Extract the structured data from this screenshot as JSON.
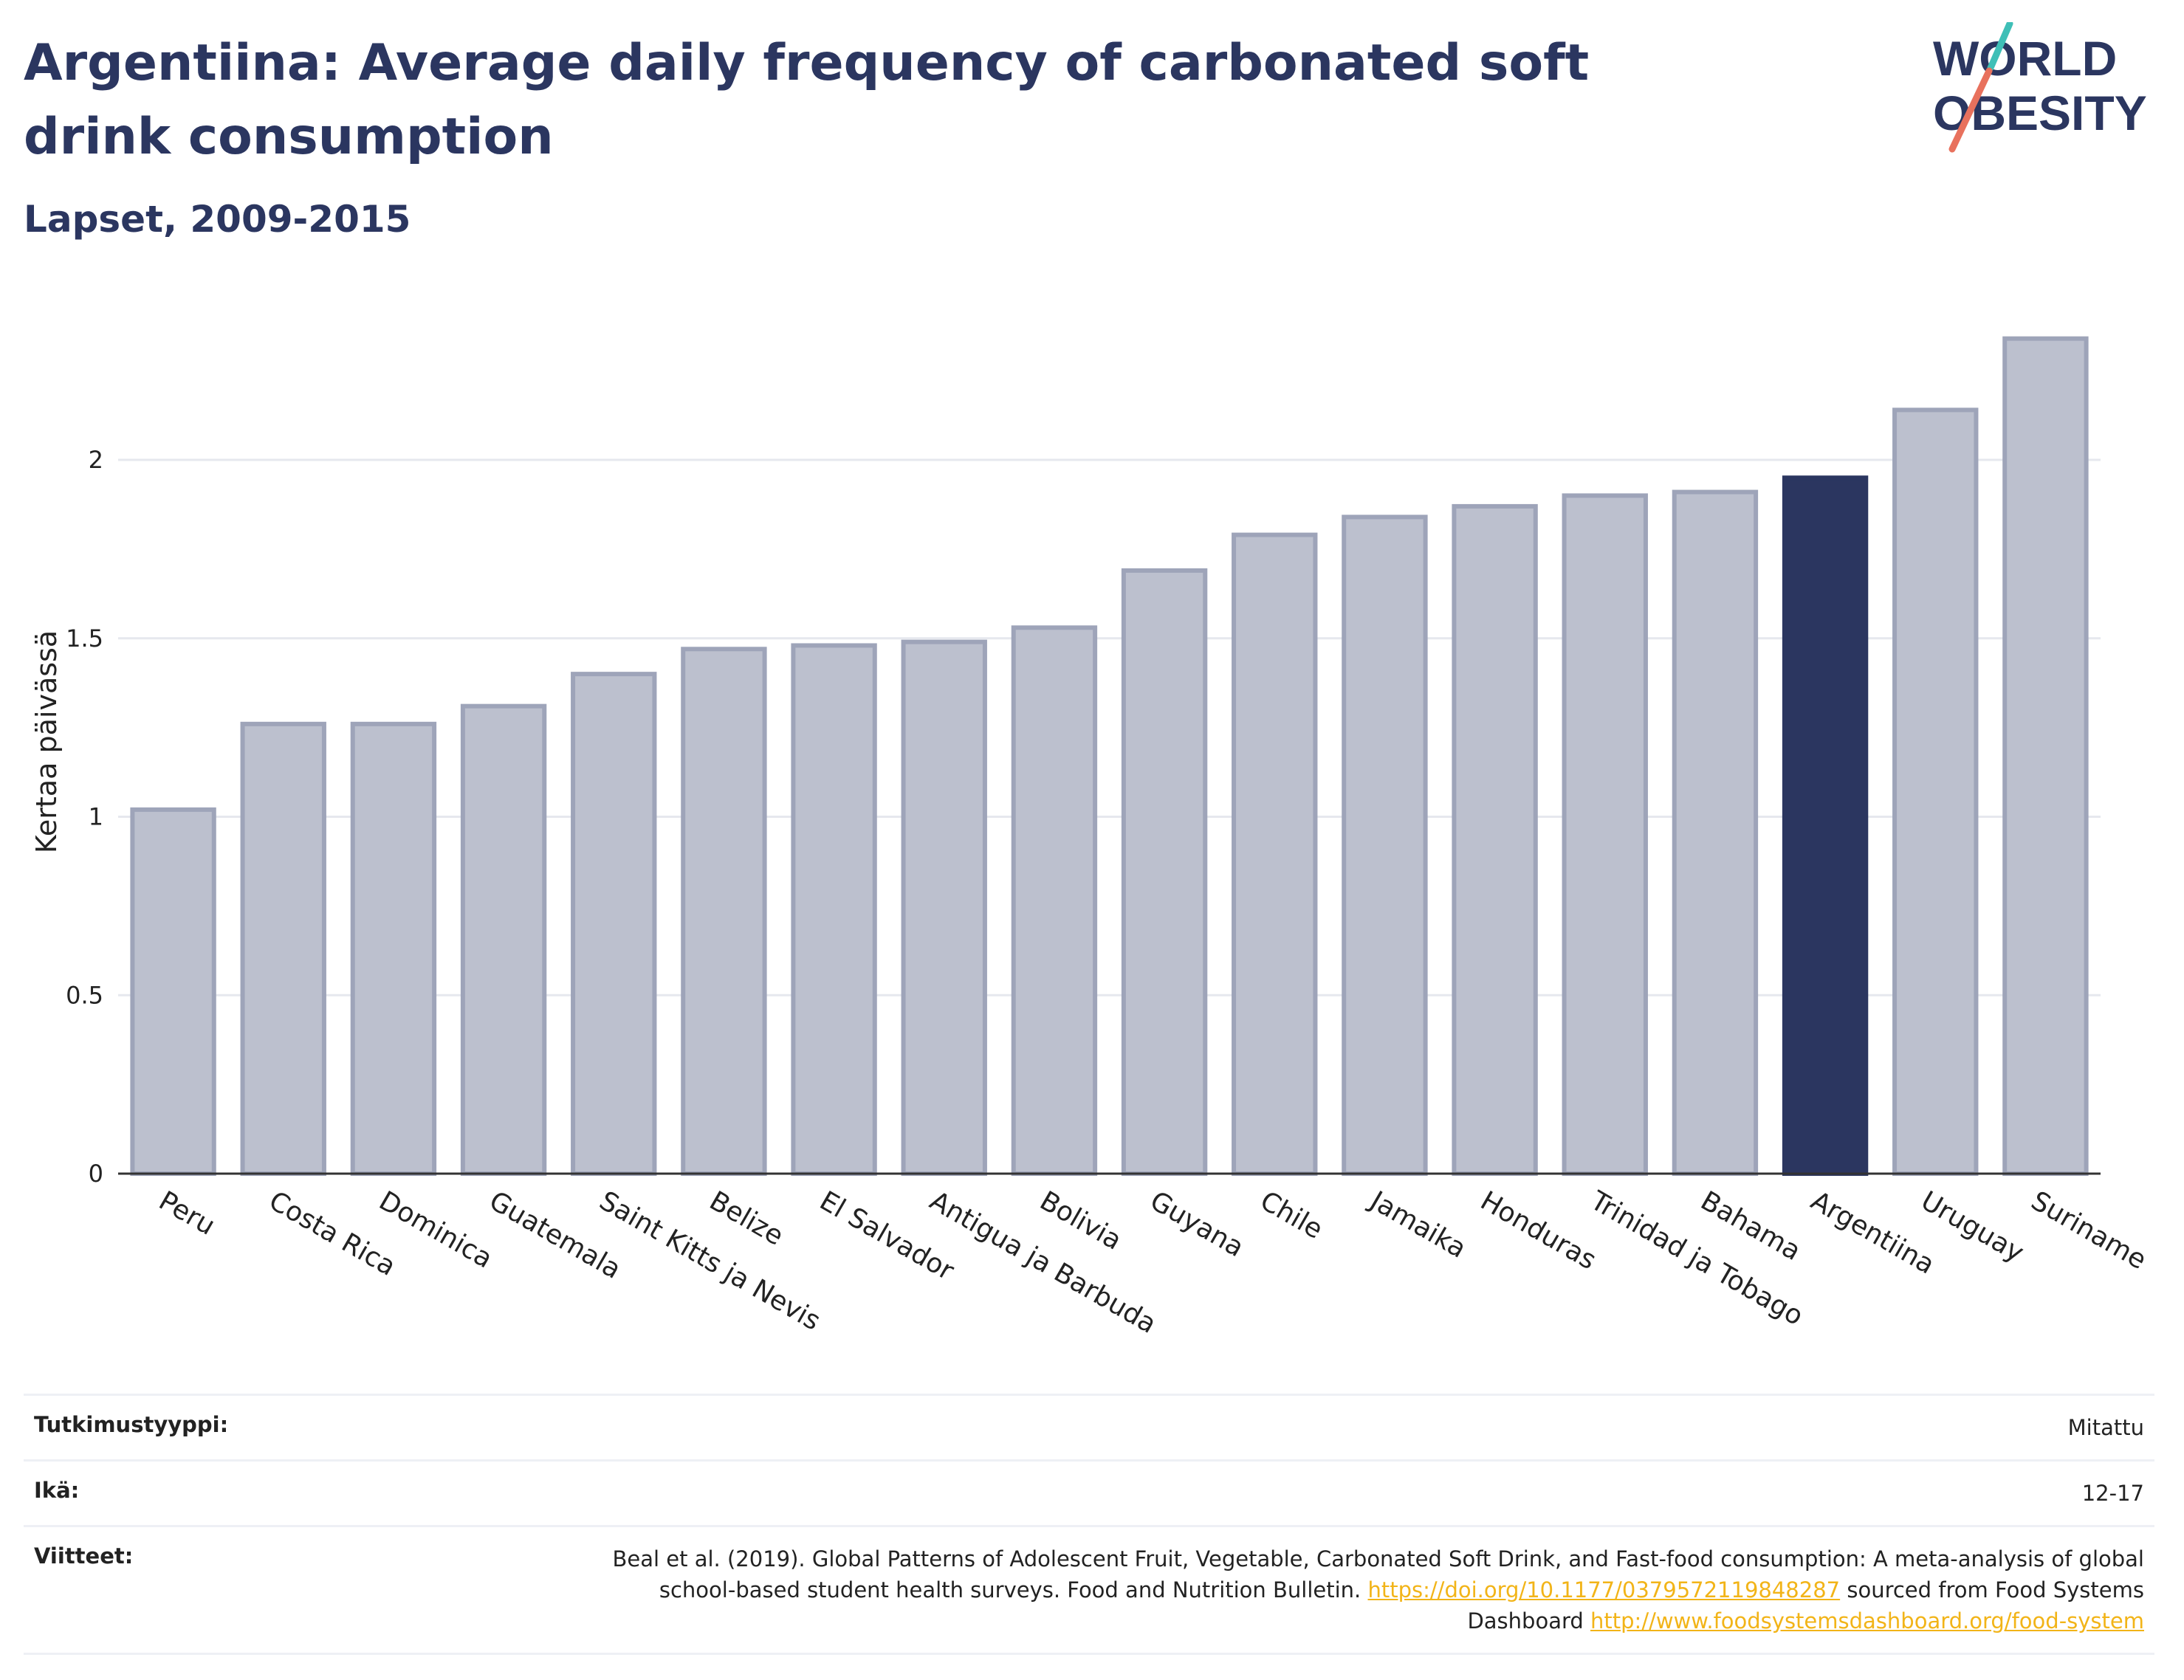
{
  "title": "Argentiina: Average daily frequency of carbonated soft drink consumption",
  "subtitle": "Lapset, 2009-2015",
  "logo": {
    "line1": "WORLD",
    "line2": "OBESITY"
  },
  "chart_data": {
    "type": "bar",
    "categories": [
      "Peru",
      "Costa Rica",
      "Dominica",
      "Guatemala",
      "Saint Kitts ja Nevis",
      "Belize",
      "El Salvador",
      "Antigua ja Barbuda",
      "Bolivia",
      "Guyana",
      "Chile",
      "Jamaika",
      "Honduras",
      "Trinidad ja Tobago",
      "Bahama",
      "Argentiina",
      "Uruguay",
      "Suriname"
    ],
    "values": [
      1.02,
      1.26,
      1.26,
      1.31,
      1.4,
      1.47,
      1.48,
      1.49,
      1.53,
      1.69,
      1.79,
      1.84,
      1.87,
      1.9,
      1.91,
      1.95,
      2.14,
      2.34
    ],
    "highlight": "Argentiina",
    "ylabel": "Kertaa päivässä",
    "xlabel": "",
    "ylim": [
      0,
      2.42
    ],
    "yticks": [
      0,
      0.5,
      1,
      1.5,
      2
    ],
    "ytick_labels": [
      "0",
      "0.5",
      "1",
      "1.5",
      "2"
    ],
    "grid": true,
    "colors": {
      "bar": "#bcc0ce",
      "bar_border": "#9ea4b9",
      "highlight": "#2b3660",
      "grid": "#e6e8ee",
      "axis": "#333333"
    }
  },
  "meta": {
    "study_type_label": "Tutkimustyyppi:",
    "study_type_value": "Mitattu",
    "age_label": "Ikä:",
    "age_value": "12-17",
    "refs_label": "Viitteet:",
    "refs_text1": "Beal et al. (2019). Global Patterns of Adolescent Fruit, Vegetable, Carbonated Soft Drink, and Fast-food consumption: A meta-analysis of global school-based student health surveys. Food and Nutrition Bulletin.",
    "refs_link1": "https://doi.org/10.1177/0379572119848287",
    "refs_text2": "sourced from Food Systems Dashboard",
    "refs_link2": "http://www.foodsystemsdashboard.org/food-system"
  }
}
